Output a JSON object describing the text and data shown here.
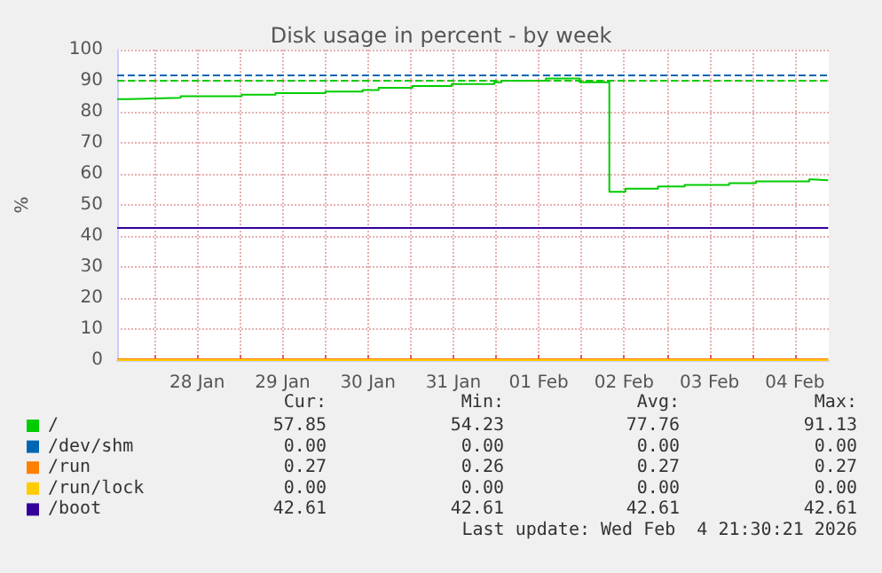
{
  "chart_data": {
    "type": "step",
    "title": "Disk usage in percent - by week",
    "ylabel": "%",
    "xlim": [
      "2026-01-27T13:30",
      "2026-02-04T21:30"
    ],
    "xticks": [
      {
        "value": "2026-01-28T00:00",
        "label": null
      },
      {
        "value": "2026-01-28T12:00",
        "label": "28 Jan"
      },
      {
        "value": "2026-01-29T00:00",
        "label": null
      },
      {
        "value": "2026-01-29T12:00",
        "label": "29 Jan"
      },
      {
        "value": "2026-01-30T00:00",
        "label": null
      },
      {
        "value": "2026-01-30T12:00",
        "label": "30 Jan"
      },
      {
        "value": "2026-01-31T00:00",
        "label": null
      },
      {
        "value": "2026-01-31T12:00",
        "label": "31 Jan"
      },
      {
        "value": "2026-02-01T00:00",
        "label": null
      },
      {
        "value": "2026-02-01T12:00",
        "label": "01 Feb"
      },
      {
        "value": "2026-02-02T00:00",
        "label": null
      },
      {
        "value": "2026-02-02T12:00",
        "label": "02 Feb"
      },
      {
        "value": "2026-02-03T00:00",
        "label": null
      },
      {
        "value": "2026-02-03T12:00",
        "label": "03 Feb"
      },
      {
        "value": "2026-02-04T00:00",
        "label": null
      },
      {
        "value": "2026-02-04T12:00",
        "label": "04 Feb"
      }
    ],
    "ylim": [
      0,
      100
    ],
    "yticks": [
      0,
      10,
      20,
      30,
      40,
      50,
      60,
      70,
      80,
      90,
      100
    ],
    "grid": true,
    "legend": "bottom left",
    "marker": "none",
    "line_style": "solid",
    "series": [
      {
        "name": "/",
        "color": "#00cc00",
        "x": [
          "2026-01-27T13:30",
          "2026-01-27T16:50",
          "2026-01-28T07:20",
          "2026-01-29T00:30",
          "2026-01-29T10:00",
          "2026-01-30T00:00",
          "2026-01-30T10:30",
          "2026-01-30T15:00",
          "2026-01-31T00:30",
          "2026-01-31T11:30",
          "2026-01-31T23:30",
          "2026-02-01T01:30",
          "2026-02-01T14:00",
          "2026-02-01T23:30",
          "2026-02-02T07:50",
          "2026-02-02T12:20",
          "2026-02-02T21:30",
          "2026-02-03T05:00",
          "2026-02-03T17:30",
          "2026-02-04T01:00",
          "2026-02-04T16:00",
          "2026-02-04T17:00",
          "2026-02-04T21:20"
        ],
        "values": [
          84.1,
          84.5,
          85,
          85.5,
          86,
          86.5,
          87,
          87.7,
          88.3,
          88.9,
          89.5,
          90,
          90.7,
          89.5,
          54.2,
          55.2,
          55.9,
          56.4,
          57,
          57.6,
          58.2,
          57.9,
          57.9
        ]
      },
      {
        "name": "/dev/shm",
        "color": "#0066b3"
      },
      {
        "name": "/run",
        "color": "#ff8000",
        "x": [
          "2026-01-27T13:30",
          "2026-02-04T21:20"
        ],
        "values": [
          0.3,
          0.3
        ]
      },
      {
        "name": "/run/lock",
        "color": "#ffcc00",
        "x": [
          "2026-01-27T13:30",
          "2026-02-04T21:20"
        ],
        "values": [
          0,
          0
        ]
      },
      {
        "name": "/boot",
        "color": "#330099",
        "x": [
          "2026-01-27T13:30",
          "2026-02-04T21:20"
        ],
        "values": [
          42.6,
          42.6
        ]
      }
    ],
    "ref_lines": [
      {
        "axis": "y",
        "value": 92,
        "label": null,
        "color": "#0066b3",
        "line_style": "dashed"
      },
      {
        "axis": "y",
        "value": 90,
        "label": null,
        "color": "#00cc00",
        "line_style": "dashed"
      }
    ],
    "annotations": [
      "Cur:",
      "Min:",
      "Avg:",
      "Max:",
      "57.85",
      "54.23",
      "77.76",
      "91.13",
      "0.00",
      "0.00",
      "0.00",
      "0.00",
      "0.27",
      "0.26",
      "0.27",
      "0.27",
      "0.00",
      "0.00",
      "0.00",
      "0.00",
      "42.61",
      "42.61",
      "42.61",
      "42.61",
      "Last update: Wed Feb  4 21:30:21 2026"
    ]
  }
}
